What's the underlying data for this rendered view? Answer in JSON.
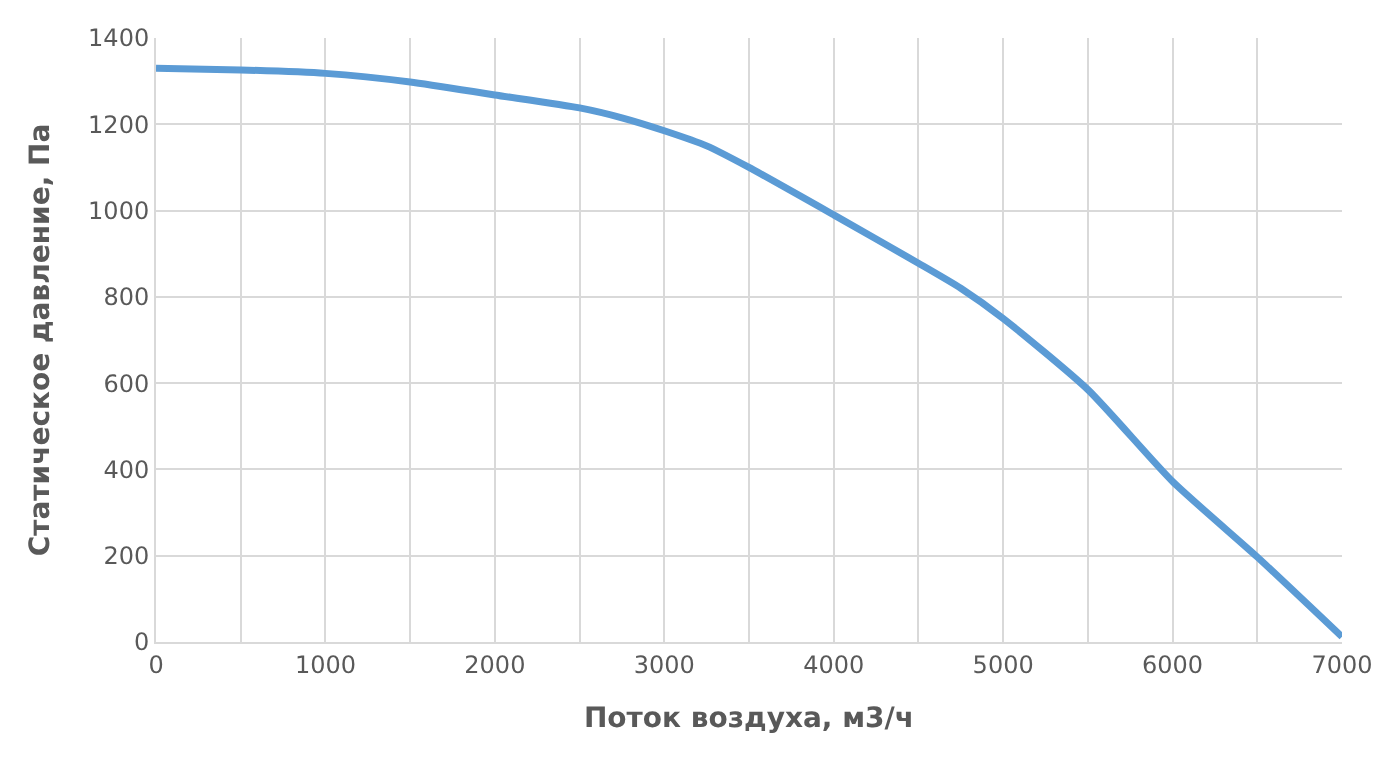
{
  "chart_data": {
    "type": "line",
    "xlabel": "Поток воздуха, м3/ч",
    "ylabel": "Статическое давление, Па",
    "x": [
      0,
      500,
      1000,
      1500,
      2000,
      2500,
      2750,
      3000,
      3250,
      3500,
      4000,
      4500,
      4750,
      5000,
      5500,
      6000,
      6500,
      7000
    ],
    "series": [
      {
        "color": "#5b9bd5",
        "values": [
          1330,
          1326,
          1318,
          1298,
          1268,
          1238,
          1215,
          1185,
          1150,
          1100,
          990,
          878,
          820,
          750,
          585,
          372,
          197,
          12
        ]
      }
    ],
    "xlim": [
      0,
      7000
    ],
    "ylim": [
      0,
      1400
    ],
    "xticks": [
      0,
      {
        "value": 500,
        "label": null
      },
      1000,
      {
        "value": 1500,
        "label": null
      },
      2000,
      {
        "value": 2500,
        "label": null
      },
      3000,
      {
        "value": 3500,
        "label": null
      },
      4000,
      {
        "value": 4500,
        "label": null
      },
      5000,
      {
        "value": 5500,
        "label": null
      },
      6000,
      {
        "value": 6500,
        "label": null
      },
      7000
    ],
    "yticks": [
      0,
      200,
      400,
      600,
      800,
      1000,
      1200,
      1400
    ],
    "grid": true,
    "marker": "none",
    "line_style": "solid"
  }
}
